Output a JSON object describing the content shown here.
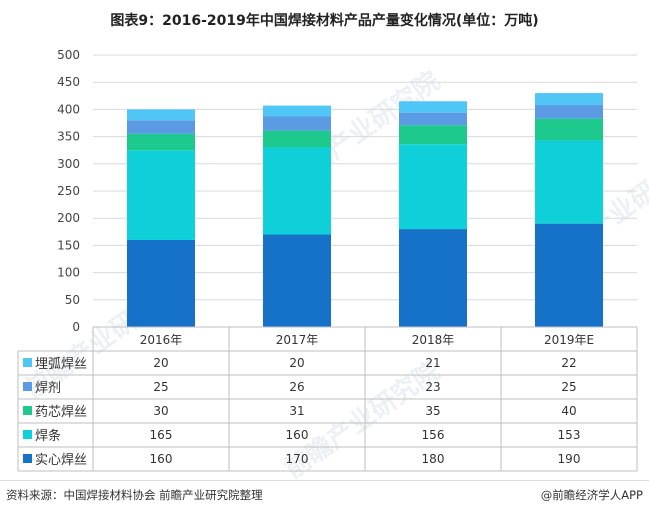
{
  "title": "图表9：2016-2019年中国焊接材料产品产量变化情况(单位：万吨)",
  "chart_data": {
    "type": "bar",
    "stacked": true,
    "categories": [
      "2016年",
      "2017年",
      "2018年",
      "2019年E"
    ],
    "ylim": [
      0,
      500
    ],
    "yticks": [
      0,
      50,
      100,
      150,
      200,
      250,
      300,
      350,
      400,
      450,
      500
    ],
    "grid": true,
    "legend": "table-below",
    "series": [
      {
        "name": "实心焊丝",
        "color": "#1672c8",
        "values": [
          160,
          170,
          180,
          190
        ]
      },
      {
        "name": "焊条",
        "color": "#0fd0d8",
        "values": [
          165,
          160,
          156,
          153
        ]
      },
      {
        "name": "药芯焊丝",
        "color": "#1ec98e",
        "values": [
          30,
          31,
          35,
          40
        ]
      },
      {
        "name": "焊剂",
        "color": "#5b9be3",
        "values": [
          25,
          26,
          23,
          25
        ]
      },
      {
        "name": "埋弧焊丝",
        "color": "#4fc6f5",
        "values": [
          20,
          20,
          21,
          22
        ]
      }
    ]
  },
  "footer": {
    "source": "资料来源：中国焊接材料协会 前瞻产业研究院整理",
    "brand": "@前瞻经济学人APP"
  },
  "watermark": "前瞻产业研究院"
}
